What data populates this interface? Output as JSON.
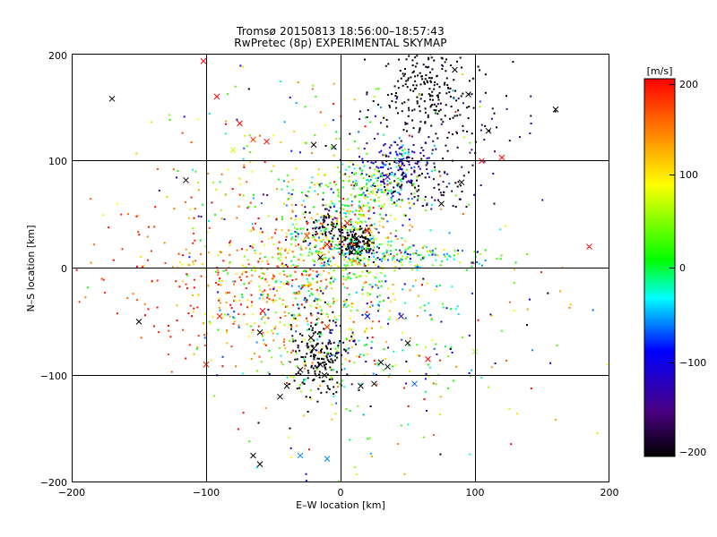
{
  "chart_data": {
    "type": "scatter",
    "title": "Tromsø 20150813 18:56:00–18:57:43",
    "subtitle": "RwPretec (8p) EXPERIMENTAL SKYMAP",
    "xlabel": "E–W location [km]",
    "ylabel": "N–S location [km]",
    "xlim": [
      -200,
      200
    ],
    "ylim": [
      -200,
      200
    ],
    "xticks": [
      "−200",
      "−100",
      "0",
      "100",
      "200"
    ],
    "yticks": [
      "200",
      "100",
      "0",
      "−100",
      "−200"
    ],
    "grid": true,
    "colorbar": {
      "label": "[m/s]",
      "range": [
        -200,
        200
      ],
      "ticks": [
        "200",
        "100",
        "0",
        "−100",
        "−200"
      ],
      "colors": [
        "#000000",
        "#4b0082",
        "#0000ff",
        "#00ffff",
        "#00ff00",
        "#ffff00",
        "#ff8000",
        "#ff0000"
      ]
    },
    "clusters": [
      {
        "cx": 65,
        "cy": 165,
        "sx": 18,
        "sy": 22,
        "n": 220,
        "v": -210,
        "vsd": 15
      },
      {
        "cx": 90,
        "cy": 130,
        "sx": 35,
        "sy": 20,
        "n": 60,
        "v": -180,
        "vsd": 30
      },
      {
        "cx": 40,
        "cy": 95,
        "sx": 15,
        "sy": 12,
        "n": 160,
        "v": -100,
        "vsd": 45
      },
      {
        "cx": 60,
        "cy": 75,
        "sx": 20,
        "sy": 15,
        "n": 90,
        "v": -190,
        "vsd": 25
      },
      {
        "cx": 20,
        "cy": 75,
        "sx": 20,
        "sy": 12,
        "n": 140,
        "v": 20,
        "vsd": 45
      },
      {
        "cx": 5,
        "cy": 30,
        "sx": 25,
        "sy": 25,
        "n": 420,
        "v": 40,
        "vsd": 90
      },
      {
        "cx": 12,
        "cy": 22,
        "sx": 7,
        "sy": 8,
        "n": 130,
        "v": -210,
        "vsd": 10
      },
      {
        "cx": -10,
        "cy": 40,
        "sx": 10,
        "sy": 10,
        "n": 70,
        "v": -190,
        "vsd": 25
      },
      {
        "cx": 50,
        "cy": 12,
        "sx": 30,
        "sy": 6,
        "n": 130,
        "v": -10,
        "vsd": 55
      },
      {
        "cx": -15,
        "cy": -80,
        "sx": 10,
        "sy": 25,
        "n": 190,
        "v": -210,
        "vsd": 15
      },
      {
        "cx": -60,
        "cy": -10,
        "sx": 40,
        "sy": 30,
        "n": 320,
        "v": 130,
        "vsd": 60
      },
      {
        "cx": -20,
        "cy": -45,
        "sx": 35,
        "sy": 35,
        "n": 280,
        "v": 30,
        "vsd": 80
      },
      {
        "cx": -130,
        "cy": -10,
        "sx": 40,
        "sy": 35,
        "n": 80,
        "v": 180,
        "vsd": 25
      },
      {
        "cx": -60,
        "cy": 80,
        "sx": 40,
        "sy": 50,
        "n": 150,
        "v": 60,
        "vsd": 100
      },
      {
        "cx": 40,
        "cy": -40,
        "sx": 40,
        "sy": 40,
        "n": 140,
        "v": 0,
        "vsd": 110
      },
      {
        "cx": 20,
        "cy": -140,
        "sx": 60,
        "sy": 40,
        "n": 70,
        "v": 40,
        "vsd": 110
      },
      {
        "cx": 120,
        "cy": -60,
        "sx": 40,
        "sy": 60,
        "n": 40,
        "v": 30,
        "vsd": 110
      },
      {
        "cx": 20,
        "cy": 140,
        "sx": 50,
        "sy": 40,
        "n": 60,
        "v": 40,
        "vsd": 110
      }
    ],
    "crosses": [
      {
        "x": -170,
        "y": 158,
        "v": -210
      },
      {
        "x": -102,
        "y": 193,
        "v": 200
      },
      {
        "x": -92,
        "y": 160,
        "v": 200
      },
      {
        "x": -75,
        "y": 135,
        "v": 200
      },
      {
        "x": -65,
        "y": 120,
        "v": 180
      },
      {
        "x": -55,
        "y": 118,
        "v": 200
      },
      {
        "x": -115,
        "y": 82,
        "v": -210
      },
      {
        "x": -20,
        "y": 115,
        "v": -210
      },
      {
        "x": -5,
        "y": 113,
        "v": -210
      },
      {
        "x": 185,
        "y": 20,
        "v": 200
      },
      {
        "x": 120,
        "y": 103,
        "v": 200
      },
      {
        "x": 105,
        "y": 100,
        "v": 190
      },
      {
        "x": -150,
        "y": -50,
        "v": -210
      },
      {
        "x": -60,
        "y": -60,
        "v": -210
      },
      {
        "x": -90,
        "y": -45,
        "v": 190
      },
      {
        "x": -10,
        "y": -55,
        "v": 180
      },
      {
        "x": 20,
        "y": -45,
        "v": -100
      },
      {
        "x": 45,
        "y": -45,
        "v": -130
      },
      {
        "x": 50,
        "y": -70,
        "v": -210
      },
      {
        "x": 65,
        "y": -85,
        "v": 200
      },
      {
        "x": 35,
        "y": -92,
        "v": -210
      },
      {
        "x": 25,
        "y": -108,
        "v": -210
      },
      {
        "x": 15,
        "y": -110,
        "v": -210
      },
      {
        "x": 55,
        "y": -108,
        "v": -70
      },
      {
        "x": 30,
        "y": -88,
        "v": -210
      },
      {
        "x": 100,
        "y": -78,
        "v": 60
      },
      {
        "x": -30,
        "y": -95,
        "v": -210
      },
      {
        "x": -40,
        "y": -110,
        "v": -210
      },
      {
        "x": -45,
        "y": -120,
        "v": -210
      },
      {
        "x": -65,
        "y": -175,
        "v": -210
      },
      {
        "x": -60,
        "y": -183,
        "v": -210
      },
      {
        "x": -30,
        "y": -175,
        "v": -60
      },
      {
        "x": -10,
        "y": -178,
        "v": -60
      },
      {
        "x": -80,
        "y": 110,
        "v": 70
      },
      {
        "x": 95,
        "y": 162,
        "v": -210
      },
      {
        "x": 85,
        "y": 185,
        "v": -210
      },
      {
        "x": 110,
        "y": 128,
        "v": -210
      },
      {
        "x": 160,
        "y": 148,
        "v": -210
      },
      {
        "x": 90,
        "y": 80,
        "v": -210
      },
      {
        "x": 75,
        "y": 60,
        "v": -210
      },
      {
        "x": 5,
        "y": 42,
        "v": 200
      },
      {
        "x": -10,
        "y": 22,
        "v": 200
      },
      {
        "x": 20,
        "y": 35,
        "v": 200
      },
      {
        "x": -25,
        "y": 30,
        "v": 180
      },
      {
        "x": 15,
        "y": 55,
        "v": 120
      },
      {
        "x": 35,
        "y": 85,
        "v": -120
      },
      {
        "x": 45,
        "y": 100,
        "v": -120
      },
      {
        "x": -15,
        "y": 10,
        "v": -210
      },
      {
        "x": -20,
        "y": -75,
        "v": -210
      },
      {
        "x": -15,
        "y": -90,
        "v": -210
      },
      {
        "x": -12,
        "y": -100,
        "v": -210
      },
      {
        "x": -22,
        "y": -65,
        "v": -210
      },
      {
        "x": 8,
        "y": 15,
        "v": -210
      },
      {
        "x": 12,
        "y": 28,
        "v": -210
      },
      {
        "x": -100,
        "y": -90,
        "v": 190
      },
      {
        "x": -58,
        "y": -40,
        "v": 200
      }
    ]
  }
}
